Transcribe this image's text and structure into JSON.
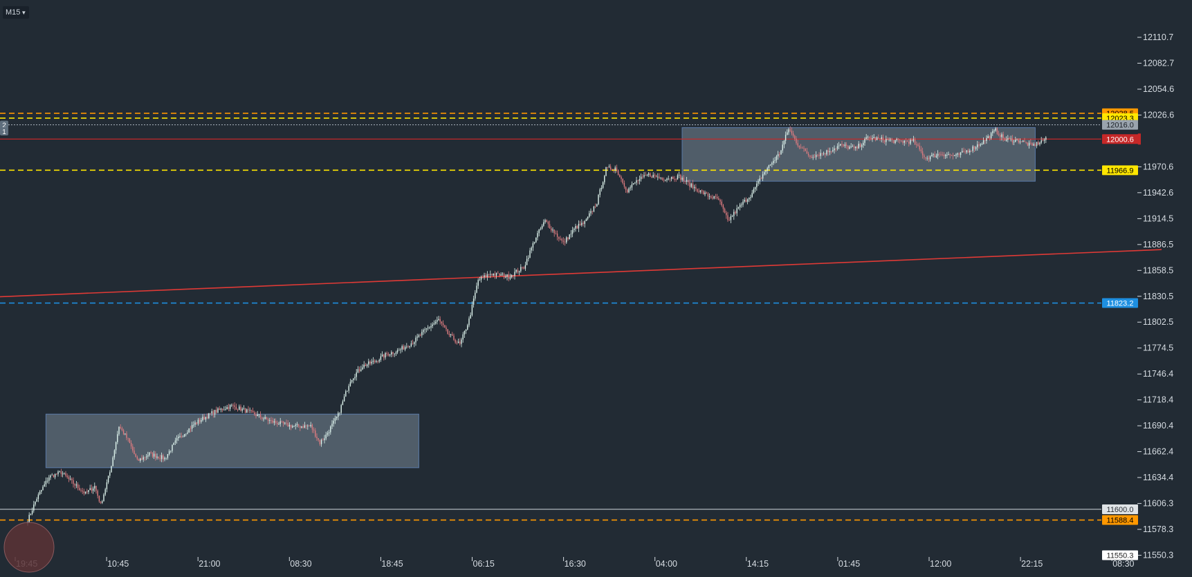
{
  "toolbar": {
    "timeframe": "M15",
    "timeframe_icon": "caret-down-icon"
  },
  "colors": {
    "background": "#222b34",
    "bull_candle": "#dff5ee",
    "bear_candle": "#e07c80",
    "trendline": "#e03a36",
    "support": "#ffe600",
    "resistance": "#ff9800",
    "blue_level": "#1e8fe0",
    "bid_line": "#c62828",
    "zone_fill": "#8a9cab",
    "axis_text": "#d6dce2"
  },
  "chart_data": {
    "type": "candlestick",
    "symbol_timeframe": "M15",
    "y_axis": {
      "min": 11550.3,
      "max": 12110.7,
      "ticks": [
        12110.7,
        12082.7,
        12054.6,
        12026.6,
        11970.6,
        11942.6,
        11914.5,
        11886.5,
        11858.5,
        11830.5,
        11802.5,
        11774.5,
        11746.4,
        11718.4,
        11690.4,
        11662.4,
        11634.4,
        11606.3,
        11578.3,
        11550.3
      ],
      "tick_labels": [
        "12110.7",
        "12082.7",
        "12054.6",
        "12026.6",
        "11970.6",
        "11942.6",
        "11914.5",
        "11886.5",
        "11858.5",
        "11830.5",
        "11802.5",
        "11774.5",
        "11746.4",
        "11718.4",
        "11690.4",
        "11662.4",
        "11634.4",
        "11606.3",
        "11578.3",
        "11550.3"
      ]
    },
    "x_axis": {
      "labels": [
        "19:45",
        "10:45",
        "21:00",
        "08:30",
        "18:45",
        "06:15",
        "16:30",
        "04:00",
        "14:15",
        "01:45",
        "12:00",
        "22:15",
        "08:30"
      ]
    },
    "price_path": [
      [
        0,
        11588
      ],
      [
        6,
        11612
      ],
      [
        14,
        11635
      ],
      [
        22,
        11640
      ],
      [
        30,
        11628
      ],
      [
        38,
        11617
      ],
      [
        44,
        11625
      ],
      [
        48,
        11605
      ],
      [
        54,
        11640
      ],
      [
        60,
        11690
      ],
      [
        66,
        11675
      ],
      [
        72,
        11652
      ],
      [
        80,
        11660
      ],
      [
        90,
        11655
      ],
      [
        98,
        11675
      ],
      [
        110,
        11693
      ],
      [
        122,
        11705
      ],
      [
        134,
        11712
      ],
      [
        146,
        11705
      ],
      [
        160,
        11695
      ],
      [
        174,
        11690
      ],
      [
        186,
        11690
      ],
      [
        192,
        11672
      ],
      [
        196,
        11680
      ],
      [
        204,
        11702
      ],
      [
        212,
        11740
      ],
      [
        220,
        11755
      ],
      [
        228,
        11760
      ],
      [
        236,
        11768
      ],
      [
        244,
        11772
      ],
      [
        254,
        11782
      ],
      [
        262,
        11795
      ],
      [
        270,
        11805
      ],
      [
        276,
        11790
      ],
      [
        284,
        11778
      ],
      [
        290,
        11805
      ],
      [
        296,
        11848
      ],
      [
        304,
        11855
      ],
      [
        316,
        11852
      ],
      [
        326,
        11862
      ],
      [
        334,
        11895
      ],
      [
        340,
        11912
      ],
      [
        346,
        11900
      ],
      [
        352,
        11888
      ],
      [
        360,
        11905
      ],
      [
        366,
        11910
      ],
      [
        374,
        11932
      ],
      [
        380,
        11968
      ],
      [
        386,
        11970
      ],
      [
        394,
        11945
      ],
      [
        400,
        11955
      ],
      [
        408,
        11962
      ],
      [
        418,
        11958
      ],
      [
        428,
        11960
      ],
      [
        436,
        11950
      ],
      [
        446,
        11940
      ],
      [
        454,
        11935
      ],
      [
        460,
        11912
      ],
      [
        468,
        11928
      ],
      [
        476,
        11942
      ],
      [
        484,
        11965
      ],
      [
        494,
        11985
      ],
      [
        500,
        12012
      ],
      [
        506,
        11995
      ],
      [
        514,
        11982
      ],
      [
        524,
        11986
      ],
      [
        534,
        11994
      ],
      [
        544,
        11990
      ],
      [
        552,
        12002
      ],
      [
        562,
        12000
      ],
      [
        572,
        11998
      ],
      [
        582,
        11998
      ],
      [
        590,
        11980
      ],
      [
        600,
        11985
      ],
      [
        610,
        11982
      ],
      [
        620,
        11990
      ],
      [
        628,
        11998
      ],
      [
        636,
        12010
      ],
      [
        642,
        12000
      ],
      [
        652,
        11999
      ],
      [
        660,
        11993
      ],
      [
        668,
        12000
      ]
    ],
    "candle_count": 670,
    "zones": [
      {
        "x_start": 12,
        "x_end": 257,
        "y_top": 11703,
        "y_bottom": 11645
      },
      {
        "x_start": 430,
        "x_end": 662,
        "y_top": 12013,
        "y_bottom": 11955
      }
    ],
    "trendline": {
      "x_start": 0,
      "y_start": 11830,
      "x_end": 745,
      "y_end": 11881
    },
    "levels": [
      {
        "price": 12028.5,
        "label": "12028.5",
        "style": "dashed",
        "color": "#ff9800"
      },
      {
        "price": 12023.3,
        "label": "12023.3",
        "style": "dashed",
        "color": "#ffe600"
      },
      {
        "price": 12016.0,
        "label": "12016.0",
        "style": "dotted",
        "color": "#aeb8c2"
      },
      {
        "price": 12000.6,
        "label": "12000.6",
        "style": "solid",
        "color": "#c62828"
      },
      {
        "price": 11966.9,
        "label": "11966.9",
        "style": "dashed",
        "color": "#ffe600"
      },
      {
        "price": 11823.2,
        "label": "11823.2",
        "style": "dashed",
        "color": "#1e8fe0"
      },
      {
        "price": 11600.0,
        "label": "11600.0",
        "style": "solid",
        "color": "#b0b6bc"
      },
      {
        "price": 11588.4,
        "label": "11588.4",
        "style": "dashed",
        "color": "#ff9800"
      },
      {
        "price": 11550.3,
        "label": "11550.3",
        "style": "solid",
        "color": "#ffffff"
      }
    ],
    "left_markers": [
      "2",
      "1"
    ],
    "current_price": "12000.6"
  }
}
